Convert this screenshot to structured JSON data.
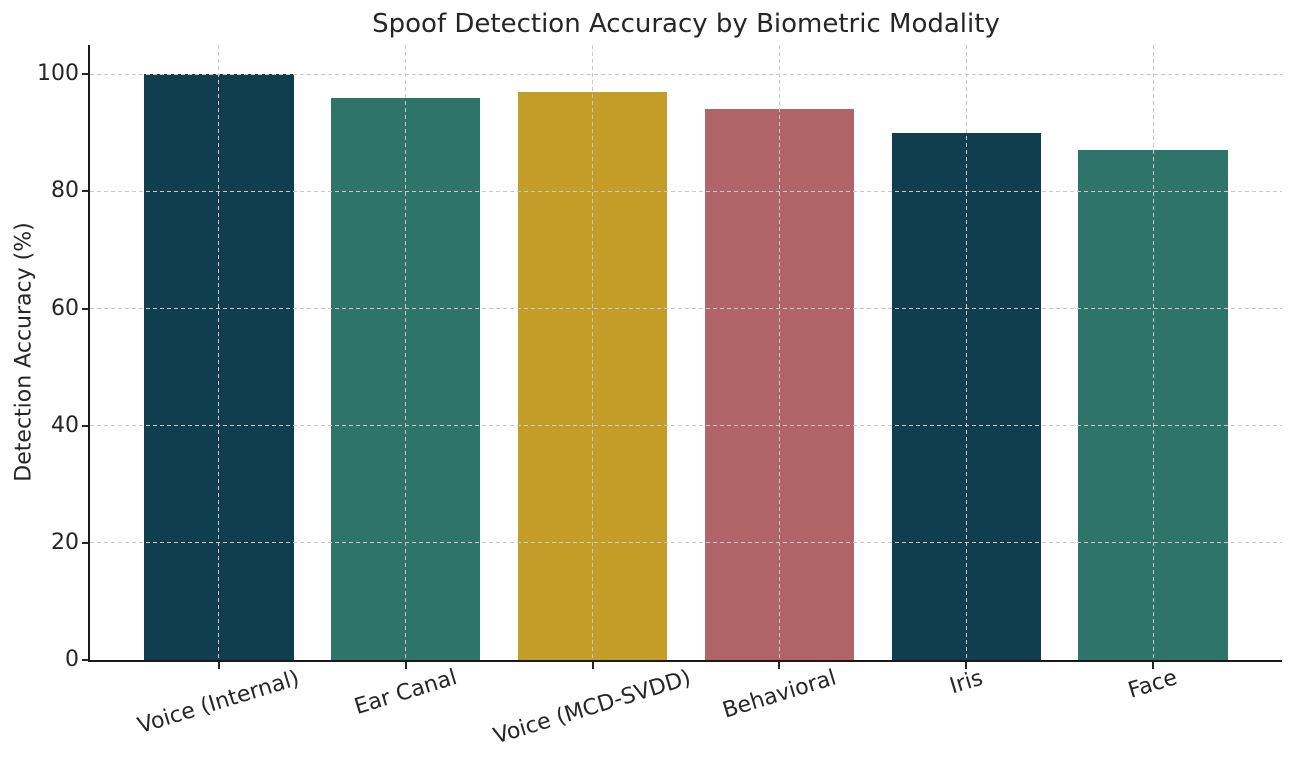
{
  "chart_data": {
    "type": "bar",
    "title": "Spoof Detection Accuracy by Biometric Modality",
    "ylabel": "Detection Accuracy (%)",
    "xlabel": "",
    "categories": [
      "Voice (Internal)",
      "Ear Canal",
      "Voice (MCD-SVDD)",
      "Behavioral",
      "Iris",
      "Face"
    ],
    "values": [
      100,
      96,
      97,
      94,
      90,
      87
    ],
    "bar_colors": [
      "#113e4f",
      "#2e7468",
      "#c49c28",
      "#b16468",
      "#113e4f",
      "#2e7468"
    ],
    "yticks": [
      0,
      20,
      40,
      60,
      80,
      100
    ],
    "ylim": [
      0,
      105
    ],
    "legend": "none",
    "grid": "dashed gridlines on both axes, drawn above bars",
    "colors": {
      "grid": "#c8c8c8",
      "axis_spine": "#1a1a1a",
      "text": "#262626",
      "background": "#ffffff"
    }
  }
}
